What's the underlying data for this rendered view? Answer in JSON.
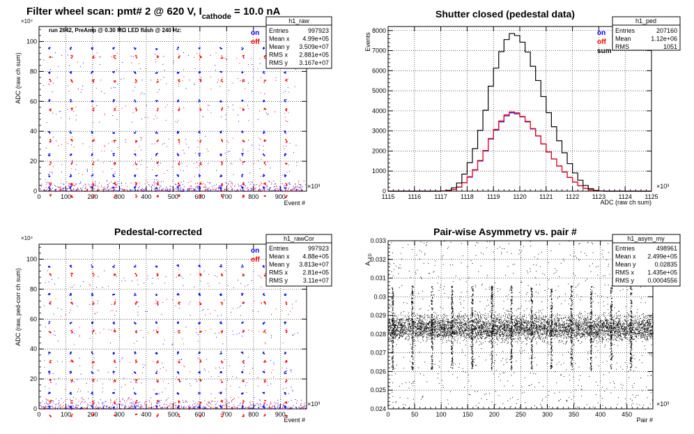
{
  "panels": {
    "raw": {
      "title_main": "Filter wheel scan: pmt#   2 @   620 V, I",
      "title_sub": "cathode",
      "title_tail": " = 10.0 nA",
      "ylabel": "ADC (raw ch sum)",
      "xlabel": "Event #",
      "x_exp": "×10³",
      "y_exp": "×10⁴",
      "note": "run 2642, PreAmp @ 0.30 MΩ   LED flash @  240 Hz:",
      "legend": [
        "on",
        "off"
      ],
      "stats": {
        "name": "h1_raw",
        "rows": [
          [
            "Entries",
            "997923"
          ],
          [
            "Mean x",
            "4.99e+05"
          ],
          [
            "Mean y",
            "3.509e+07"
          ],
          [
            "RMS x",
            "2.881e+05"
          ],
          [
            "RMS y",
            "3.167e+07"
          ]
        ]
      }
    },
    "ped": {
      "title": "Shutter closed (pedestal data)",
      "ylabel": "Events",
      "xlabel": "ADC (raw ch sum)",
      "x_exp": "×10³",
      "legend": [
        "on",
        "off",
        "sum"
      ],
      "stats": {
        "name": "h1_ped",
        "rows": [
          [
            "Entries",
            "207160"
          ],
          [
            "Mean",
            "1.12e+06"
          ],
          [
            "RMS",
            "1051"
          ]
        ]
      }
    },
    "cor": {
      "title": "Pedestal-corrected",
      "ylabel": "ADC (raw, ped-corr ch sum)",
      "xlabel": "Event #",
      "x_exp": "×10³",
      "y_exp": "×10⁴",
      "legend": [
        "on",
        "off"
      ],
      "stats": {
        "name": "h1_rawCor",
        "rows": [
          [
            "Entries",
            "997923"
          ],
          [
            "Mean x",
            "4.88e+05"
          ],
          [
            "Mean y",
            "3.813e+07"
          ],
          [
            "RMS x",
            "2.81e+05"
          ],
          [
            "RMS y",
            "3.11e+07"
          ]
        ]
      }
    },
    "asym": {
      "title": "Pair-wise Asymmetry vs. pair #",
      "ylabel": "A_LED",
      "xlabel": "Pair #",
      "x_exp": "×10³",
      "stats": {
        "name": "h1_asym_my",
        "rows": [
          [
            "Entries",
            "498961"
          ],
          [
            "Mean x",
            "2.499e+05"
          ],
          [
            "Mean y",
            "0.02835"
          ],
          [
            "RMS x",
            "1.435e+05"
          ],
          [
            "RMS y",
            "0.0004556"
          ]
        ]
      }
    }
  },
  "colors": {
    "on": "#0000ff",
    "off": "#ff0000",
    "sum": "#000000"
  },
  "chart_data": [
    {
      "type": "scatter",
      "id": "raw",
      "xlim": [
        0,
        998
      ],
      "ylim": [
        0,
        110
      ],
      "xticks": [
        0,
        100,
        200,
        300,
        400,
        500,
        600,
        700,
        800,
        900
      ],
      "yticks": [
        0,
        20,
        40,
        60,
        80,
        100
      ],
      "grid": true,
      "groups_x_start": [
        15,
        95,
        175,
        255,
        335,
        415,
        495,
        575,
        655,
        735,
        815,
        895
      ],
      "levels": [
        95,
        79,
        60,
        39,
        24,
        10,
        2
      ],
      "series": [
        {
          "name": "on"
        },
        {
          "name": "off"
        }
      ]
    },
    {
      "type": "histogram",
      "id": "ped",
      "xlim": [
        1115,
        1125
      ],
      "ylim": [
        0,
        8200
      ],
      "xticks": [
        1115,
        1116,
        1117,
        1118,
        1119,
        1120,
        1121,
        1122,
        1123,
        1124,
        1125
      ],
      "yticks": [
        0,
        1000,
        2000,
        3000,
        4000,
        5000,
        6000,
        7000,
        8000
      ],
      "grid": true,
      "bin_width": 0.2,
      "series": [
        {
          "name": "on",
          "x": [
            1117.0,
            1117.2,
            1117.4,
            1117.6,
            1117.8,
            1118.0,
            1118.2,
            1118.4,
            1118.6,
            1118.8,
            1119.0,
            1119.2,
            1119.4,
            1119.6,
            1119.8,
            1120.0,
            1120.2,
            1120.4,
            1120.6,
            1120.8,
            1121.0,
            1121.2,
            1121.4,
            1121.6,
            1121.8,
            1122.0,
            1122.2,
            1122.4,
            1122.6,
            1122.8,
            1123.0
          ],
          "values": [
            5,
            20,
            80,
            200,
            420,
            700,
            1050,
            1500,
            2000,
            2600,
            3050,
            3450,
            3750,
            3900,
            3850,
            3700,
            3450,
            3100,
            2750,
            2350,
            1950,
            1600,
            1250,
            950,
            680,
            450,
            270,
            140,
            60,
            20,
            5
          ]
        },
        {
          "name": "off",
          "x": [
            1117.0,
            1117.2,
            1117.4,
            1117.6,
            1117.8,
            1118.0,
            1118.2,
            1118.4,
            1118.6,
            1118.8,
            1119.0,
            1119.2,
            1119.4,
            1119.6,
            1119.8,
            1120.0,
            1120.2,
            1120.4,
            1120.6,
            1120.8,
            1121.0,
            1121.2,
            1121.4,
            1121.6,
            1121.8,
            1122.0,
            1122.2,
            1122.4,
            1122.6,
            1122.8,
            1123.0
          ],
          "values": [
            5,
            25,
            85,
            210,
            430,
            720,
            1070,
            1530,
            2030,
            2630,
            3080,
            3500,
            3800,
            3950,
            3900,
            3720,
            3480,
            3120,
            2760,
            2360,
            1960,
            1610,
            1260,
            960,
            690,
            460,
            275,
            145,
            62,
            22,
            6
          ]
        },
        {
          "name": "sum",
          "x": [
            1117.0,
            1117.2,
            1117.4,
            1117.6,
            1117.8,
            1118.0,
            1118.2,
            1118.4,
            1118.6,
            1118.8,
            1119.0,
            1119.2,
            1119.4,
            1119.6,
            1119.8,
            1120.0,
            1120.2,
            1120.4,
            1120.6,
            1120.8,
            1121.0,
            1121.2,
            1121.4,
            1121.6,
            1121.8,
            1122.0,
            1122.2,
            1122.4,
            1122.6,
            1122.8,
            1123.0
          ],
          "values": [
            10,
            45,
            165,
            410,
            850,
            1420,
            2120,
            3030,
            4030,
            5230,
            6130,
            6950,
            7550,
            7850,
            7750,
            7420,
            6930,
            6220,
            5510,
            4710,
            3910,
            3210,
            2510,
            1910,
            1370,
            910,
            545,
            285,
            122,
            42,
            11
          ]
        }
      ]
    },
    {
      "type": "scatter",
      "id": "cor",
      "xlim": [
        0,
        998
      ],
      "ylim": [
        0,
        110
      ],
      "xticks": [
        0,
        100,
        200,
        300,
        400,
        500,
        600,
        700,
        800,
        900
      ],
      "yticks": [
        0,
        20,
        40,
        60,
        80,
        100
      ],
      "grid": true,
      "groups_x_start": [
        15,
        95,
        175,
        255,
        335,
        415,
        495,
        575,
        655,
        735,
        815,
        895
      ],
      "levels": [
        95,
        76,
        57,
        37,
        24,
        10,
        1
      ],
      "series": [
        {
          "name": "on"
        },
        {
          "name": "off"
        }
      ]
    },
    {
      "type": "scatter",
      "id": "asym",
      "xlim": [
        0,
        499
      ],
      "ylim": [
        0.024,
        0.033
      ],
      "xticks": [
        0,
        50,
        100,
        150,
        200,
        250,
        300,
        350,
        400,
        450
      ],
      "yticks": [
        0.024,
        0.025,
        0.026,
        0.027,
        0.028,
        0.029,
        0.03,
        0.031,
        0.032,
        0.033
      ],
      "grid": true,
      "band_center": 0.02835,
      "band_halfwidth": 0.0005,
      "spike_x": [
        8,
        45,
        82,
        120,
        158,
        195,
        232,
        270,
        307,
        345,
        382,
        420,
        457
      ]
    }
  ]
}
